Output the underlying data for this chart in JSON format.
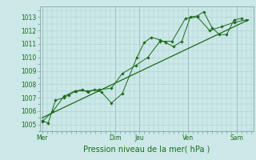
{
  "background_color": "#cce8e8",
  "grid_color": "#aacccc",
  "line_color": "#1a6b1a",
  "marker_color": "#1a6b1a",
  "ylabel_ticks": [
    1005,
    1006,
    1007,
    1008,
    1009,
    1010,
    1011,
    1012,
    1013
  ],
  "ylim": [
    1004.5,
    1013.8
  ],
  "xlabel": "Pression niveau de la mer( hPa )",
  "day_labels": [
    "Mer",
    "Dim",
    "Jeu",
    "Ven",
    "Sam"
  ],
  "day_positions": [
    0,
    3,
    4,
    6,
    8
  ],
  "xlim": [
    -0.1,
    8.7
  ],
  "series1_x": [
    0.0,
    0.25,
    0.55,
    0.9,
    1.1,
    1.4,
    1.65,
    1.9,
    2.15,
    2.45,
    2.85,
    3.3,
    3.9,
    4.2,
    4.5,
    4.85,
    5.1,
    5.4,
    5.75,
    6.1,
    6.4,
    6.65,
    7.0,
    7.3,
    7.6,
    7.9,
    8.2
  ],
  "series1_y": [
    1005.3,
    1005.1,
    1006.8,
    1007.0,
    1007.2,
    1007.5,
    1007.6,
    1007.4,
    1007.6,
    1007.4,
    1006.6,
    1007.3,
    1010.0,
    1011.1,
    1011.5,
    1011.3,
    1011.1,
    1010.8,
    1011.2,
    1013.0,
    1013.1,
    1013.4,
    1012.2,
    1011.7,
    1011.7,
    1012.8,
    1012.9
  ],
  "series2_x": [
    0.0,
    0.45,
    0.9,
    1.35,
    1.85,
    2.35,
    2.85,
    3.3,
    3.85,
    4.35,
    4.85,
    5.35,
    5.9,
    6.4,
    6.9,
    7.4,
    7.9,
    8.4
  ],
  "series2_y": [
    1005.2,
    1006.0,
    1007.1,
    1007.5,
    1007.5,
    1007.6,
    1007.7,
    1008.8,
    1009.4,
    1010.0,
    1011.2,
    1011.2,
    1012.9,
    1013.0,
    1012.0,
    1012.3,
    1012.6,
    1012.8
  ],
  "trend_x": [
    0.0,
    8.5
  ],
  "trend_y": [
    1005.5,
    1012.8
  ],
  "vline_positions": [
    0,
    3,
    4,
    6,
    8
  ],
  "tick_fontsize": 5.5,
  "label_fontsize": 7.0
}
